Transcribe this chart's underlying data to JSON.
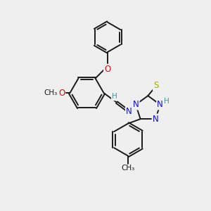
{
  "background_color": "#efefef",
  "bond_color": "#1a1a1a",
  "bond_width": 1.4,
  "dbo": 0.055,
  "atom_colors": {
    "C": "#1a1a1a",
    "H": "#4a9090",
    "N": "#1010cc",
    "O": "#cc1010",
    "S": "#aaaa00"
  },
  "font_size": 8.5
}
